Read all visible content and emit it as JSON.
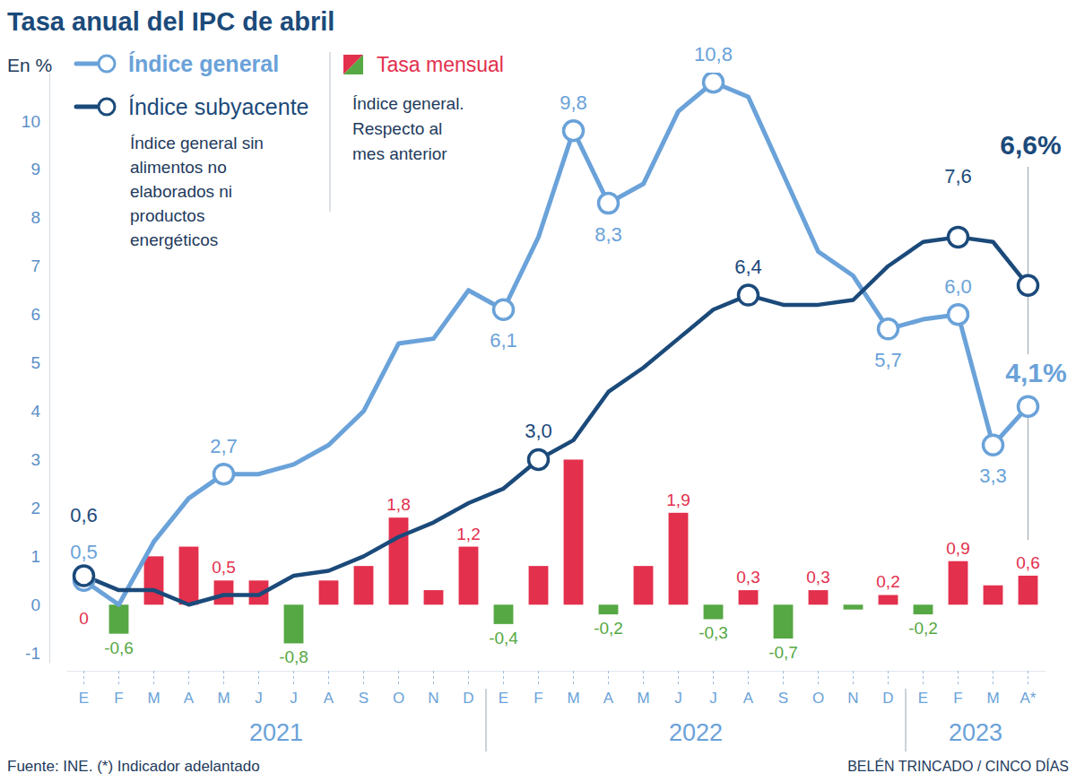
{
  "chart_data": {
    "type": "line",
    "title": "Tasa anual del IPC de abril",
    "ylabel": "En %",
    "categories": [
      "E",
      "F",
      "M",
      "A",
      "M",
      "J",
      "J",
      "A",
      "S",
      "O",
      "N",
      "D",
      "E",
      "F",
      "M",
      "A",
      "M",
      "J",
      "J",
      "A",
      "S",
      "O",
      "N",
      "D",
      "E",
      "F",
      "M",
      "A*"
    ],
    "year_labels": [
      "2021",
      "2022",
      "2023"
    ],
    "ylim": [
      -1.2,
      11
    ],
    "yticks": [
      -1,
      0,
      1,
      2,
      3,
      4,
      5,
      6,
      7,
      8,
      9,
      10
    ],
    "grid": false,
    "legend": "top-left",
    "data_labels": true,
    "series": [
      {
        "name": "Índice general",
        "type": "line",
        "color": "#6aa2d9",
        "marker": "circle",
        "values": [
          0.5,
          0,
          1.3,
          2.2,
          2.7,
          2.7,
          2.9,
          3.3,
          4.0,
          5.4,
          5.5,
          6.5,
          6.1,
          7.6,
          9.8,
          8.3,
          8.7,
          10.2,
          10.8,
          10.5,
          8.9,
          7.3,
          6.8,
          5.7,
          5.9,
          6.0,
          3.3,
          4.1
        ],
        "value_labels": [
          "0,5",
          null,
          null,
          null,
          "2,7",
          null,
          null,
          null,
          null,
          null,
          null,
          null,
          "6,1",
          null,
          "9,8",
          "8,3",
          null,
          null,
          "10,8",
          null,
          null,
          null,
          null,
          "5,7",
          null,
          "6,0",
          "3,3",
          "4,1%"
        ]
      },
      {
        "name": "Índice subyacente",
        "type": "line",
        "color": "#1b4a7a",
        "marker": "circle",
        "description": [
          "Índice general sin",
          "alimentos no",
          "elaborados ni",
          "productos",
          "energéticos"
        ],
        "values": [
          0.6,
          0.3,
          0.3,
          0.0,
          0.2,
          0.2,
          0.6,
          0.7,
          1.0,
          1.4,
          1.7,
          2.1,
          2.4,
          3.0,
          3.4,
          4.4,
          4.9,
          5.5,
          6.1,
          6.4,
          6.2,
          6.2,
          6.3,
          7.0,
          7.5,
          7.6,
          7.5,
          6.6
        ],
        "value_labels": [
          "0,6",
          null,
          null,
          null,
          null,
          null,
          null,
          null,
          null,
          null,
          null,
          null,
          null,
          "3,0",
          null,
          null,
          null,
          null,
          null,
          "6,4",
          null,
          null,
          null,
          null,
          null,
          "7,6",
          null,
          "6,6%"
        ]
      },
      {
        "name": "Tasa mensual",
        "type": "bar",
        "description": [
          "Índice general.",
          "Respecto al",
          "mes anterior"
        ],
        "colors": [
          "#e3304d",
          "#56a844",
          "#e3304d",
          "#e3304d",
          "#e3304d",
          "#e3304d",
          "#56a844",
          "#e3304d",
          "#e3304d",
          "#e3304d",
          "#e3304d",
          "#e3304d",
          "#56a844",
          "#e3304d",
          "#e3304d",
          "#56a844",
          "#e3304d",
          "#e3304d",
          "#56a844",
          "#e3304d",
          "#56a844",
          "#e3304d",
          "#56a844",
          "#e3304d",
          "#56a844",
          "#e3304d",
          "#e3304d",
          "#e3304d"
        ],
        "values": [
          0,
          -0.6,
          1.0,
          1.2,
          0.5,
          0.5,
          -0.8,
          0.5,
          0.8,
          1.8,
          0.3,
          1.2,
          -0.4,
          0.8,
          3.0,
          -0.2,
          0.8,
          1.9,
          -0.3,
          0.3,
          -0.7,
          0.3,
          -0.1,
          0.2,
          -0.2,
          0.9,
          0.4,
          0.6
        ],
        "value_labels": [
          "0",
          "-0,6",
          null,
          null,
          "0,5",
          null,
          "-0,8",
          null,
          null,
          "1,8",
          null,
          "1,2",
          "-0,4",
          null,
          null,
          "-0,2",
          null,
          "1,9",
          "-0,3",
          "0,3",
          "-0,7",
          "0,3",
          null,
          "0,2",
          "-0,2",
          "0,9",
          null,
          "0,6"
        ]
      }
    ],
    "source": "Fuente: INE. (*) Indicador adelantado",
    "credit": "BELÉN TRINCADO / CINCO DÍAS"
  }
}
